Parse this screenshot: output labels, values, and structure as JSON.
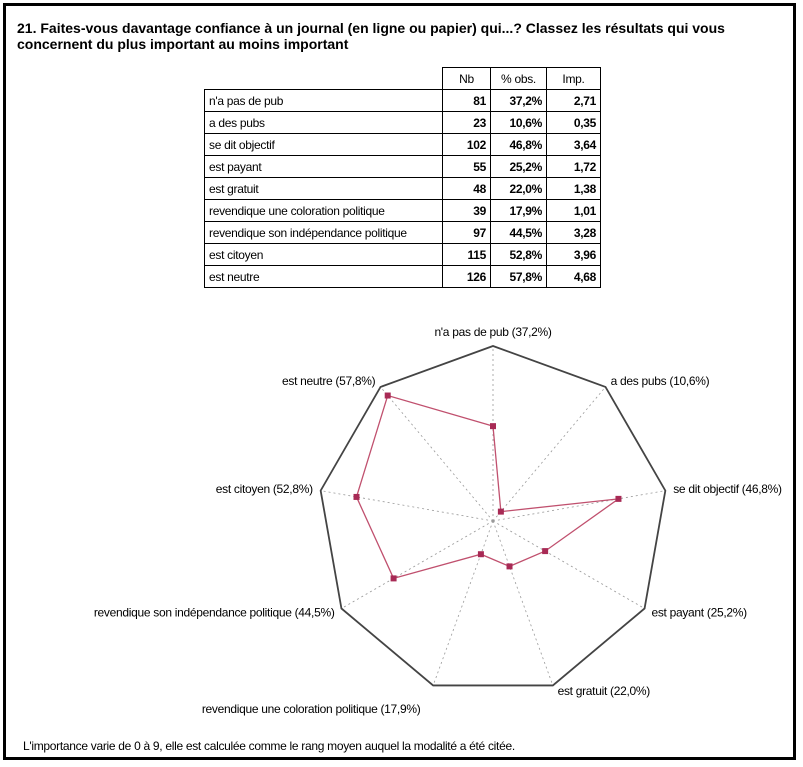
{
  "question": "21. Faites-vous davantage confiance à un journal (en ligne ou papier) qui...? Classez les résultats qui vous concernent du plus important au moins important",
  "table": {
    "headers": [
      "Nb",
      "% obs.",
      "Imp."
    ],
    "rows": [
      {
        "label": "n'a pas de pub",
        "nb": "81",
        "obs": "37,2%",
        "imp": "2,71"
      },
      {
        "label": "a des pubs",
        "nb": "23",
        "obs": "10,6%",
        "imp": "0,35"
      },
      {
        "label": "se dit objectif",
        "nb": "102",
        "obs": "46,8%",
        "imp": "3,64"
      },
      {
        "label": "est payant",
        "nb": "55",
        "obs": "25,2%",
        "imp": "1,72"
      },
      {
        "label": "est gratuit",
        "nb": "48",
        "obs": "22,0%",
        "imp": "1,38"
      },
      {
        "label": "revendique une coloration politique",
        "nb": "39",
        "obs": "17,9%",
        "imp": "1,01"
      },
      {
        "label": "revendique son indépendance politique",
        "nb": "97",
        "obs": "44,5%",
        "imp": "3,28"
      },
      {
        "label": "est citoyen",
        "nb": "115",
        "obs": "52,8%",
        "imp": "3,96"
      },
      {
        "label": "est neutre",
        "nb": "126",
        "obs": "57,8%",
        "imp": "4,68"
      }
    ]
  },
  "chart_data": {
    "type": "radar",
    "axes": [
      "n'a pas de pub (37,2%)",
      "a des pubs (10,6%)",
      "se dit objectif (46,8%)",
      "est payant (25,2%)",
      "est gratuit (22,0%)",
      "revendique une coloration politique (17,9%)",
      "revendique son indépendance politique (44,5%)",
      "est citoyen (52,8%)",
      "est neutre (57,8%)"
    ],
    "values": [
      2.71,
      0.35,
      3.64,
      1.72,
      1.38,
      1.01,
      3.28,
      3.96,
      4.68
    ],
    "range": [
      0,
      5
    ],
    "series_color": "#c0506e",
    "grid": "dotted spokes"
  },
  "note": "L'importance varie de 0 à 9, elle est calculée comme le rang moyen auquel la modalité a été citée."
}
